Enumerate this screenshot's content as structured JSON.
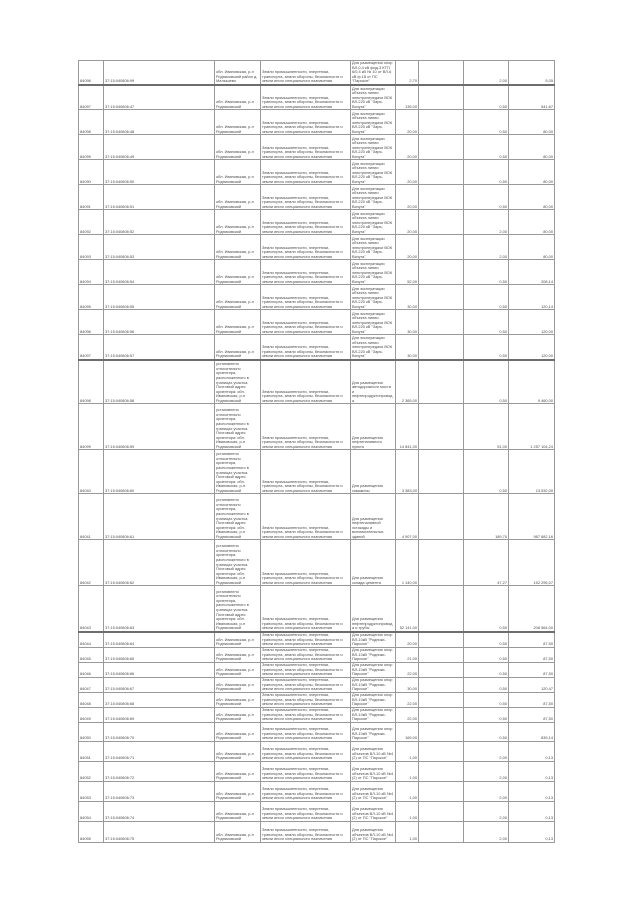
{
  "table": {
    "rows": [
      {
        "id": "84096",
        "cad": "37:15:040806:99",
        "addr": "обл. Ивановская, р-н Родниковский район д. Малышево",
        "cat": "Земли промышленности, энергетики, транспорта, земли обороны, безопасности и земли иного специального назначения",
        "use": "Для размещения опор ВЛ-0,4 кВ фид.3 КТП 6/0,4 кВ № 10 от ВЛ-6 кВ ф.18 от ПС \"Парское\"",
        "area": "2,70",
        "rate": "2,00",
        "value": "5,05"
      },
      {
        "id": "84097",
        "cad": "37:15:040806:47",
        "addr": "обл. Ивановская, р-н Родниковский",
        "cat": "Земли промышленности, энергетики, транспорта, земли обороны, безопасности и земли иного специального назначения",
        "use": "Для эксплуатации объекта линии электропередачи ВОК ВЛ-220 кВ \"Заря-Вичуга\"",
        "area": "135,00",
        "rate": "0,50",
        "value": "541,67"
      },
      {
        "id": "84098",
        "cad": "37:15:040806:48",
        "addr": "обл. Ивановская, р-н Родниковский",
        "cat": "Земли промышленности, энергетики, транспорта, земли обороны, безопасности и земли иного специального назначения",
        "use": "Для эксплуатации объекта линии электропередачи ВОК ВЛ-220 кВ \"Заря-Вичуга\"",
        "area": "20,00",
        "rate": "0,50",
        "value": "80,00"
      },
      {
        "id": "84099",
        "cad": "37:15:040806:49",
        "addr": "обл. Ивановская, р-н Родниковский",
        "cat": "Земли промышленности, энергетики, транспорта, земли обороны, безопасности и земли иного специального назначения",
        "use": "Для эксплуатации объекта линии электропередачи ВОК ВЛ-220 кВ \"Заря-Вичуга\"",
        "area": "20,00",
        "rate": "0,50",
        "value": "80,00"
      },
      {
        "id": "84090",
        "cad": "37:15:040806:50",
        "addr": "обл. Ивановская, р-н Родниковский",
        "cat": "Земли промышленности, энергетики, транспорта, земли обороны, безопасности и земли иного специального назначения",
        "use": "Для эксплуатации объекта линии электропередачи ВОК ВЛ-220 кВ \"Заря-Вичуга\"",
        "area": "20,00",
        "rate": "0,50",
        "value": "80,00"
      },
      {
        "id": "84091",
        "cad": "37:15:040806:51",
        "addr": "обл. Ивановская, р-н Родниковский",
        "cat": "Земли промышленности, энергетики, транспорта, земли обороны, безопасности и земли иного специального назначения",
        "use": "Для эксплуатации объекта линии электропередачи ВОК ВЛ-220 кВ \"Заря-Вичуга\"",
        "area": "20,00",
        "rate": "0,50",
        "value": "80,00"
      },
      {
        "id": "84092",
        "cad": "37:15:040806:52",
        "addr": "обл. Ивановская, р-н Родниковский",
        "cat": "Земли промышленности, энергетики, транспорта, земли обороны, безопасности и земли иного специального назначения",
        "use": "Для эксплуатации объекта линии электропередачи ВОК ВЛ-220 кВ \"Заря-Вичуга\"",
        "area": "20,00",
        "rate": "2,00",
        "value": "80,00"
      },
      {
        "id": "84093",
        "cad": "37:15:040806:53",
        "addr": "обл. Ивановская, р-н Родниковский",
        "cat": "Земли промышленности, энергетики, транспорта, земли обороны, безопасности и земли иного специального назначения",
        "use": "Для эксплуатации объекта линии электропередачи ВОК ВЛ-220 кВ \"Заря-Вичуга\"",
        "area": "20,00",
        "rate": "2,00",
        "value": "80,00"
      },
      {
        "id": "84094",
        "cad": "37:15:040806:54",
        "addr": "обл. Ивановская, р-н Родниковский",
        "cat": "Земли промышленности, энергетики, транспорта, земли обороны, безопасности и земли иного специального назначения",
        "use": "Для эксплуатации объекта линии электропередачи ВОК ВЛ-220 кВ \"Заря-Вичуга\"",
        "area": "52,00",
        "rate": "0,50",
        "value": "208,14"
      },
      {
        "id": "84095",
        "cad": "37:15:040806:55",
        "addr": "обл. Ивановская, р-н Родниковский",
        "cat": "Земли промышленности, энергетики, транспорта, земли обороны, безопасности и земли иного специального назначения",
        "use": "Для эксплуатации объекта линии электропередачи ВОК ВЛ-220 кВ \"Заря-Вичуга\"",
        "area": "30,00",
        "rate": "0,50",
        "value": "120,14"
      },
      {
        "id": "84096",
        "cad": "37:15:040806:56",
        "addr": "обл. Ивановская, р-н Родниковский",
        "cat": "Земли промышленности, энергетики, транспорта, земли обороны, безопасности и земли иного специального назначения",
        "use": "Для эксплуатации объекта линии электропередачи ВОК ВЛ-220 кВ \"Заря-Вичуга\"",
        "area": "30,00",
        "rate": "0,50",
        "value": "120,00"
      },
      {
        "id": "84097",
        "cad": "37:15:040806:57",
        "addr": "обл. Ивановская, р-н Родниковский",
        "cat": "Земли промышленности, энергетики, транспорта, земли обороны, безопасности и земли иного специального назначения",
        "use": "Для эксплуатации объекта линии электропередачи ВОК ВЛ-220 кВ \"Заря-Вичуга\"",
        "area": "30,00",
        "rate": "0,50",
        "value": "120,00"
      },
      {
        "id": "84098",
        "cad": "37:15:040806:58",
        "addr": "установлено относительно ориентира, расположенного в границах участка. Почтовый адрес ориентира: обл. Ивановская, р-н Родниковский",
        "cat": "Земли промышленности, энергетики, транспорта, земли обороны, безопасности и земли иного специального назначения",
        "use": "Для размещения автодорожного моста и нефтепродуктопровода",
        "area": "2 365,00",
        "rate": "0,50",
        "value": "9 460,00"
      },
      {
        "id": "84099",
        "cad": "37:15:040806:59",
        "addr": "установлено относительно ориентира, расположенного в границах участка. Почтовый адрес ориентира: обл. Ивановская, р-н Родниковский",
        "cat": "Земли промышленности, энергетики, транспорта, земли обороны, безопасности и земли иного специального назначения",
        "use": "Для размещения нефтеналивного пункта",
        "area": "14 841,00",
        "rate": "51,00",
        "value": "1 257 104,24"
      },
      {
        "id": "84040",
        "cad": "37:15:040806:60",
        "addr": "установлено относительно ориентира, расположенного в границах участка. Почтовый адрес ориентира: обл. Ивановская, р-н Родниковский",
        "cat": "Земли промышленности, энергетики, транспорта, земли обороны, безопасности и земли иного специального назначения",
        "use": "Для размещения скважины",
        "area": "3 383,00",
        "rate": "0,50",
        "value": "13 532,00"
      },
      {
        "id": "84041",
        "cad": "37:15:040806:61",
        "addr": "установлено относительно ориентира, расположенного в границах участка. Почтовый адрес ориентира: обл. Ивановская, р-н Родниковский",
        "cat": "Земли промышленности, энергетики, транспорта, земли обороны, безопасности и земли иного специального назначения",
        "use": "Для размещения нефтеналивной эстакады и вспомогательных зданий",
        "area": "4 907,00",
        "rate": "189,70",
        "value": "987 882,16"
      },
      {
        "id": "84042",
        "cad": "37:15:040806:62",
        "addr": "установлено относительно ориентира, расположенного в границах участка. Почтовый адрес ориентира: обл. Ивановская, р-н Родниковский",
        "cat": "Земли промышленности, энергетики, транспорта, земли обороны, безопасности и земли иного специального назначения",
        "use": "Для размещения склада цемента",
        "area": "1 140,00",
        "rate": "47,27",
        "value": "152 295,07"
      },
      {
        "id": "84043",
        "cad": "37:15:040806:63",
        "addr": "установлено относительно ориентира, расположенного в границах участка. Почтовый адрес ориентира: обл. Ивановская, р-н Родниковский",
        "cat": "Земли промышленности, энергетики, транспорта, земли обороны, безопасности и земли иного специального назначения",
        "use": "Для размещения нефтепродуктопровода и трубы",
        "area": "52 141,00",
        "rate": "0,50",
        "value": "208 564,00"
      },
      {
        "id": "84044",
        "cad": "37:15:040806:64",
        "addr": "обл. Ивановская, р-н Родниковский",
        "cat": "Земли промышленности, энергетики, транспорта, земли обороны, безопасности и земли иного специального назначения",
        "use": "Для размещения опор ВЛ-10кВ \"Родники-Парское\"",
        "area": "20,00",
        "rate": "0,50",
        "value": "87,50"
      },
      {
        "id": "84045",
        "cad": "37:15:040806:65",
        "addr": "обл. Ивановская, р-н Родниковский",
        "cat": "Земли промышленности, энергетики, транспорта, земли обороны, безопасности и земли иного специального назначения",
        "use": "Для размещения опор ВЛ-10кВ \"Родники-Парское\"",
        "area": "21,00",
        "rate": "0,50",
        "value": "87,50"
      },
      {
        "id": "84046",
        "cad": "37:15:040806:66",
        "addr": "обл. Ивановская, р-н Родниковский",
        "cat": "Земли промышленности, энергетики, транспорта, земли обороны, безопасности и земли иного специального назначения",
        "use": "Для размещения опор ВЛ-10кВ \"Родники-Парское\"",
        "area": "22,00",
        "rate": "0,50",
        "value": "87,50"
      },
      {
        "id": "84047",
        "cad": "37:15:040806:67",
        "addr": "обл. Ивановская, р-н Родниковский",
        "cat": "Земли промышленности, энергетики, транспорта, земли обороны, безопасности и земли иного специального назначения",
        "use": "Для размещения опор ВЛ-10кВ \"Родники-Парское\"",
        "area": "30,00",
        "rate": "0,50",
        "value": "120,47"
      },
      {
        "id": "84048",
        "cad": "37:15:040806:68",
        "addr": "обл. Ивановская, р-н Родниковский",
        "cat": "Земли промышленности, энергетики, транспорта, земли обороны, безопасности и земли иного специального назначения",
        "use": "Для размещения опор ВЛ-10кВ \"Родники-Парское\"",
        "area": "22,00",
        "rate": "0,50",
        "value": "87,50"
      },
      {
        "id": "84049",
        "cad": "37:15:040806:69",
        "addr": "обл. Ивановская, р-н Родниковский",
        "cat": "Земли промышленности, энергетики, транспорта, земли обороны, безопасности и земли иного специального назначения",
        "use": "Для размещения опор ВЛ-10кВ \"Родники-Парское\"",
        "area": "22,00",
        "rate": "0,50",
        "value": "87,50"
      },
      {
        "id": "84050",
        "cad": "37:15:040806:70",
        "addr": "обл. Ивановская, р-н Родниковский",
        "cat": "Земли промышленности, энергетики, транспорта, земли обороны, безопасности и земли иного специального назначения",
        "use": "Для размещения опор ВЛ-10кВ \"Родники-Парское\"",
        "area": "169,00",
        "rate": "0,50",
        "value": "839,14"
      },
      {
        "id": "84051",
        "cad": "37:15:040806:71",
        "addr": "обл. Ивановская, р-н Родниковский",
        "cat": "Земли промышленности, энергетики, транспорта, земли обороны, безопасности и земли иного специального назначения",
        "use": "Для размещения объектов ВЛ-10 кВ №4 (2) от ПС \"Парское\"",
        "area": "1,00",
        "rate": "2,00",
        "value": "0,13"
      },
      {
        "id": "84052",
        "cad": "37:15:040806:72",
        "addr": "обл. Ивановская, р-н Родниковский",
        "cat": "Земли промышленности, энергетики, транспорта, земли обороны, безопасности и земли иного специального назначения",
        "use": "Для размещения объектов ВЛ-10 кВ №4 (2) от ПС \"Парское\"",
        "area": "1,00",
        "rate": "2,00",
        "value": "0,13"
      },
      {
        "id": "84053",
        "cad": "37:15:040806:73",
        "addr": "обл. Ивановская, р-н Родниковский",
        "cat": "Земли промышленности, энергетики, транспорта, земли обороны, безопасности и земли иного специального назначения",
        "use": "Для размещения объектов ВЛ-10 кВ №4 (2) от ПС \"Парское\"",
        "area": "1,00",
        "rate": "2,00",
        "value": "0,13"
      },
      {
        "id": "84054",
        "cad": "37:15:040806:74",
        "addr": "обл. Ивановская, р-н Родниковский",
        "cat": "Земли промышленности, энергетики, транспорта, земли обороны, безопасности и земли иного специального назначения",
        "use": "Для размещения объектов ВЛ-10 кВ №4 (2) от ПС \"Парское\"",
        "area": "1,00",
        "rate": "2,00",
        "value": "0,13"
      },
      {
        "id": "84055",
        "cad": "37:15:040806:75",
        "addr": "обл. Ивановская, р-н Родниковский",
        "cat": "Земли промышленности, энергетики, транспорта, земли обороны, безопасности и земли иного специального назначения",
        "use": "Для размещения объектов ВЛ-10 кВ №4 (2) от ПС \"Парское\"",
        "area": "1,00",
        "rate": "2,00",
        "value": "0,13"
      }
    ]
  }
}
